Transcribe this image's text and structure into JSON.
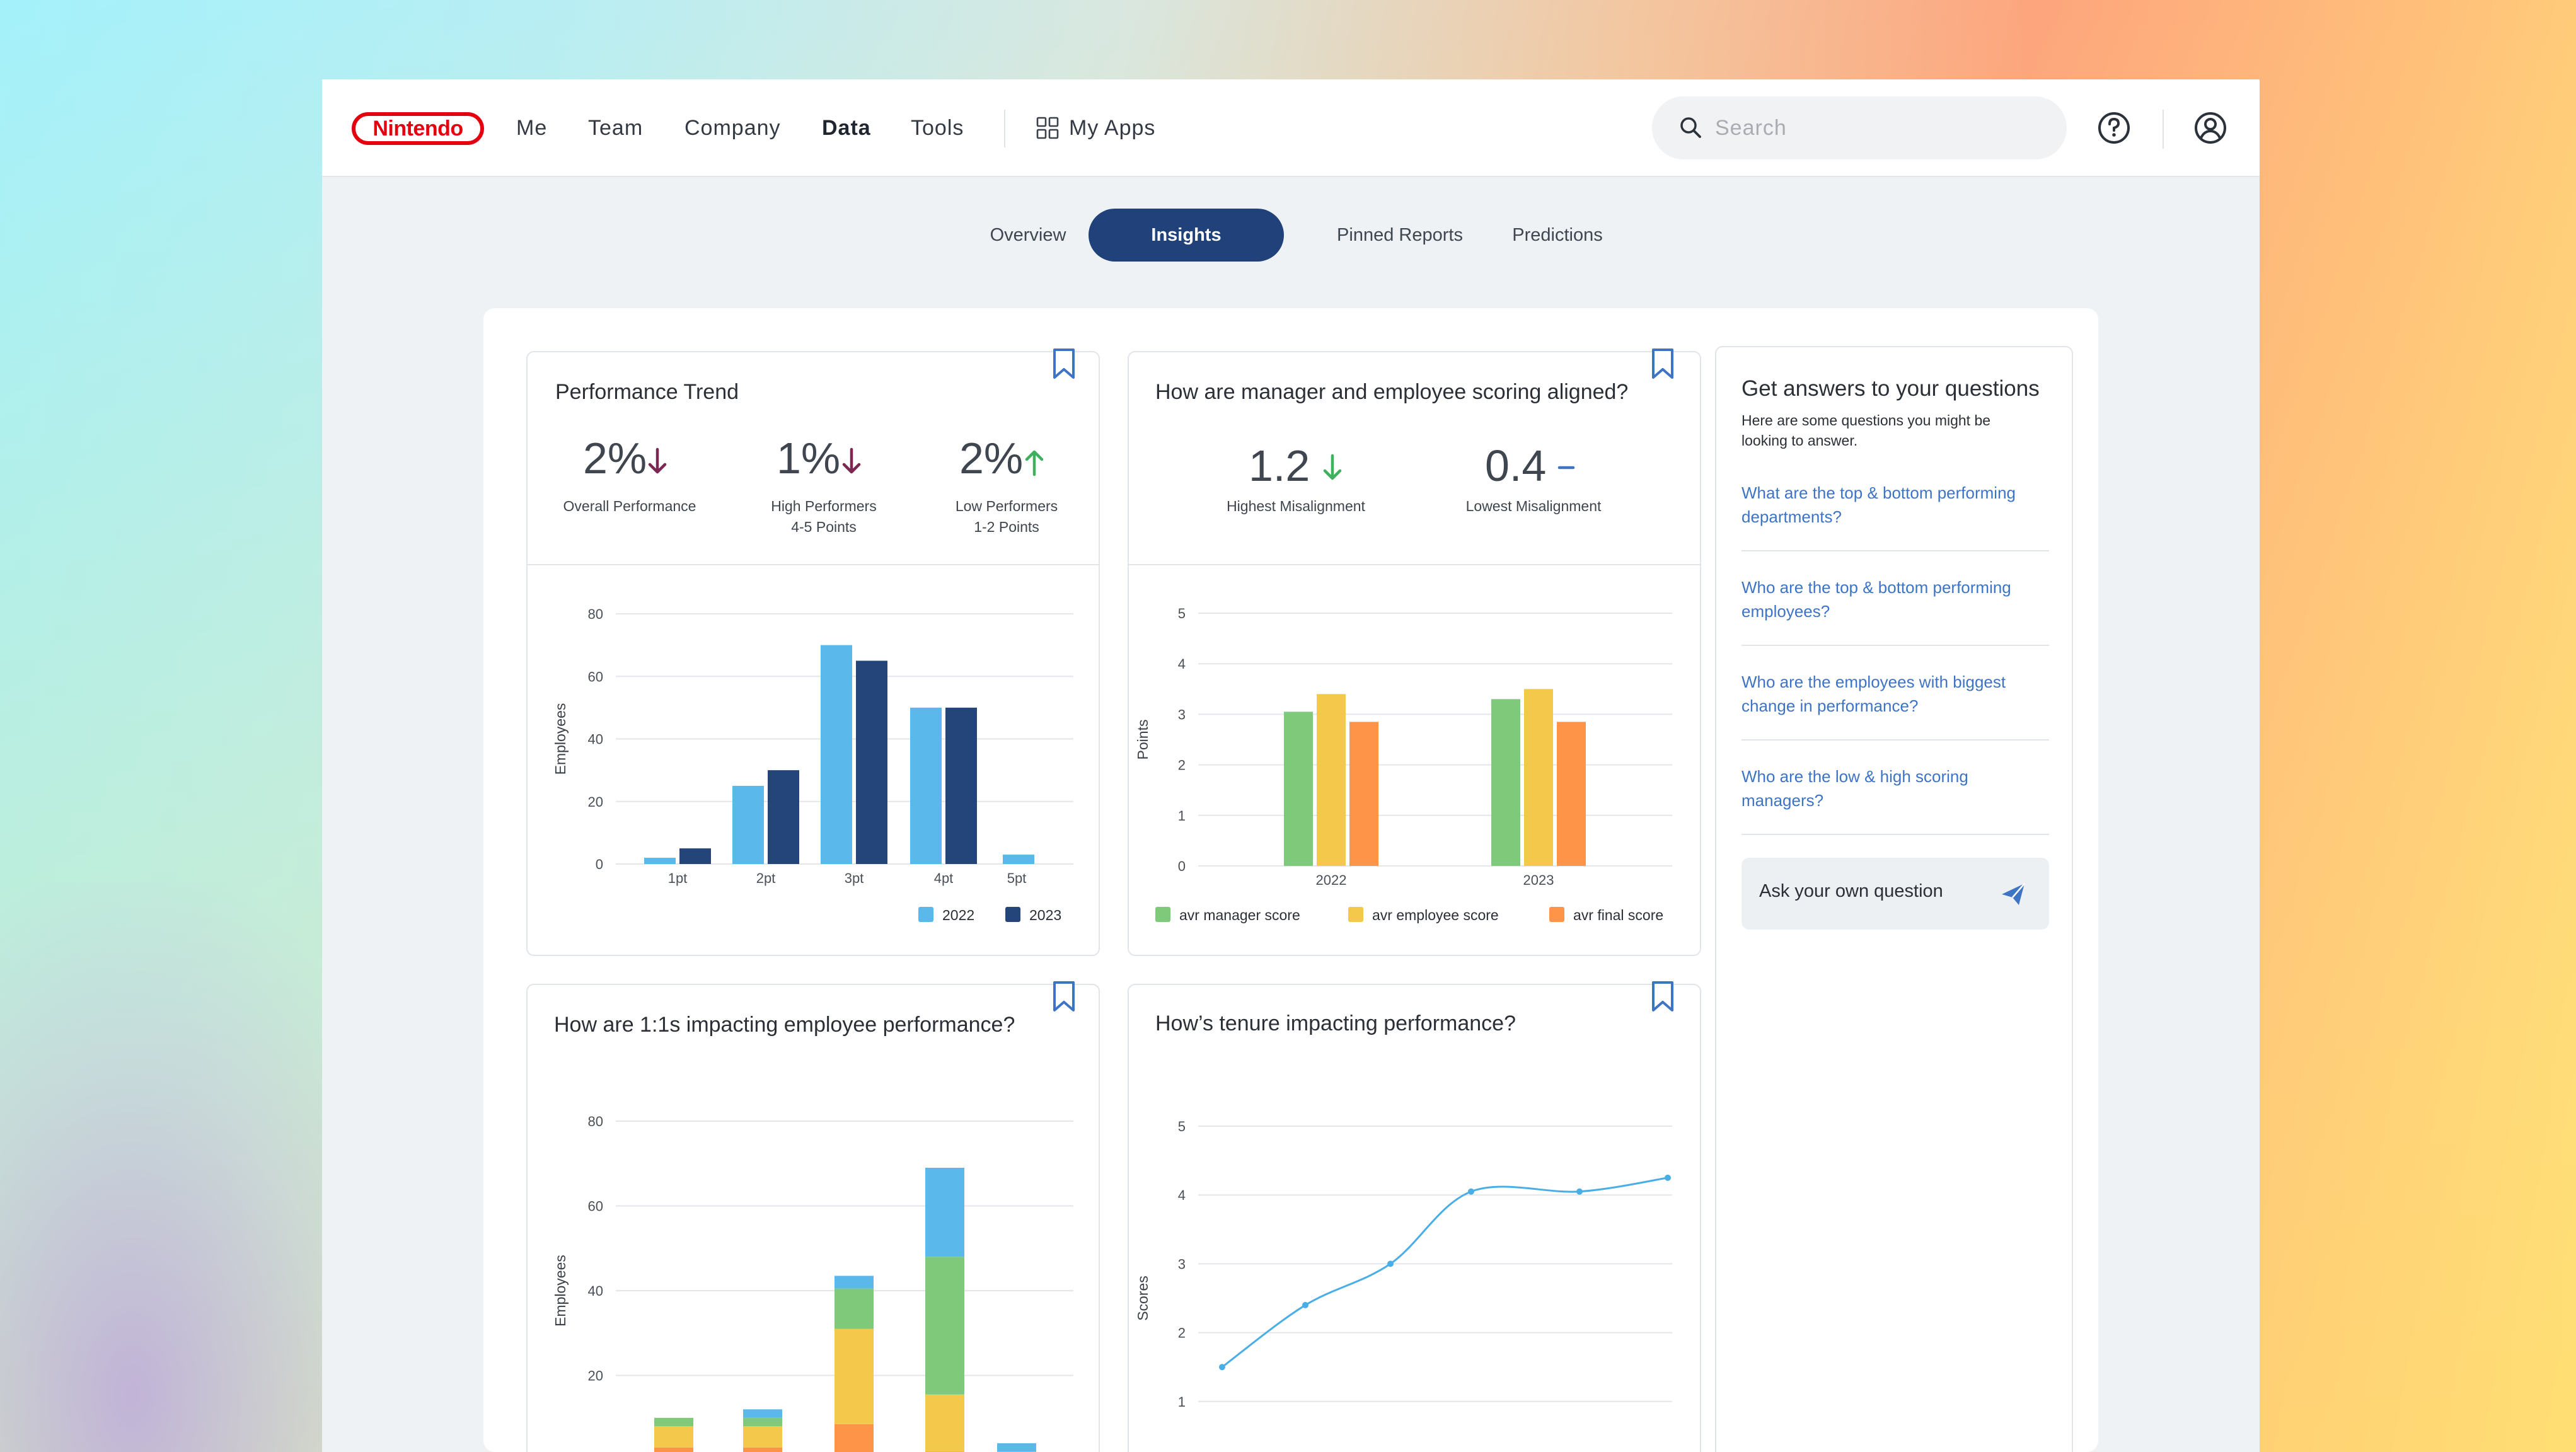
{
  "brand": {
    "logo_text": "Nintendo",
    "logo_color": "#e4000f"
  },
  "nav": {
    "items": [
      {
        "label": "Me",
        "active": false
      },
      {
        "label": "Team",
        "active": false
      },
      {
        "label": "Company",
        "active": false
      },
      {
        "label": "Data",
        "active": true
      },
      {
        "label": "Tools",
        "active": false
      }
    ],
    "my_apps": "My Apps"
  },
  "search": {
    "placeholder": "Search"
  },
  "tabs": [
    {
      "label": "Overview",
      "active": false
    },
    {
      "label": "Insights",
      "active": true
    },
    {
      "label": "Pinned Reports",
      "active": false
    },
    {
      "label": "Predictions",
      "active": false
    }
  ],
  "colors": {
    "primary": "#21417a",
    "link": "#3d74c5",
    "series_light_blue": "#5ab8ea",
    "series_dark_blue": "#234579",
    "series_green": "#7fc97a",
    "series_yellow": "#f4c84a",
    "series_orange": "#fe9448",
    "line_blue": "#4aaee6",
    "arrow_down_purple": "#7b2752",
    "arrow_up_green": "#3fb05e",
    "dash_blue": "#3d74c5"
  },
  "performance_trend": {
    "title": "Performance Trend",
    "kpis": [
      {
        "value": "2%",
        "direction": "down",
        "label_line1": "Overall Performance",
        "label_line2": ""
      },
      {
        "value": "1%",
        "direction": "down",
        "label_line1": "High Performers",
        "label_line2": "4-5 Points"
      },
      {
        "value": "2%",
        "direction": "up",
        "label_line1": "Low Performers",
        "label_line2": "1-2 Points"
      }
    ]
  },
  "alignment": {
    "title": "How are manager and employee scoring aligned?",
    "kpis": [
      {
        "value": "1.2",
        "indicator": "down-arrow",
        "label": "Highest Misalignment"
      },
      {
        "value": "0.4",
        "indicator": "dash",
        "label": "Lowest Misalignment"
      }
    ]
  },
  "one_on_ones": {
    "title": "How are 1:1s impacting employee performance?"
  },
  "tenure": {
    "title": "How’s tenure impacting performance?"
  },
  "sidebar": {
    "title": "Get answers to your questions",
    "subtitle": "Here are some questions you might be looking to answer.",
    "questions": [
      "What are the top & bottom performing departments?",
      "Who are the top & bottom performing employees?",
      "Who are the employees with biggest change in performance?",
      "Who are the low & high scoring managers?"
    ],
    "ask_label": "Ask your own question"
  },
  "chart_data": [
    {
      "type": "bar",
      "title": "",
      "categories": [
        "1pt",
        "2pt",
        "3pt",
        "4pt",
        "5pt"
      ],
      "series": [
        {
          "name": "2022",
          "color": "#5ab8ea",
          "values": [
            2,
            25,
            70,
            50,
            3
          ]
        },
        {
          "name": "2023",
          "color": "#234579",
          "values": [
            5,
            30,
            65,
            50,
            null
          ]
        }
      ],
      "xlabel": "",
      "ylabel": "Employees",
      "ylim": [
        0,
        80
      ],
      "yticks": [
        0,
        20,
        40,
        60,
        80
      ],
      "grid": true,
      "legend": "bottom-right"
    },
    {
      "type": "bar",
      "title": "",
      "categories": [
        "2022",
        "2023"
      ],
      "series": [
        {
          "name": "avr manager score",
          "color": "#7fc97a",
          "values": [
            3.05,
            3.3
          ]
        },
        {
          "name": "avr employee score",
          "color": "#f4c84a",
          "values": [
            3.4,
            3.5
          ]
        },
        {
          "name": "avr final score",
          "color": "#fe9448",
          "values": [
            2.85,
            2.85
          ]
        }
      ],
      "xlabel": "",
      "ylabel": "Points",
      "ylim": [
        0,
        5
      ],
      "yticks": [
        0,
        1,
        2,
        3,
        4,
        5
      ],
      "grid": true,
      "legend": "bottom"
    },
    {
      "type": "bar",
      "stacked": true,
      "title": "",
      "categories": [
        "",
        "",
        "",
        "",
        ""
      ],
      "series": [
        {
          "color": "#fe9448",
          "values": [
            3,
            3,
            8.5,
            2,
            1
          ]
        },
        {
          "color": "#f4c84a",
          "values": [
            5,
            5,
            22.5,
            13.5,
            1
          ]
        },
        {
          "color": "#7fc97a",
          "values": [
            2,
            2,
            9.5,
            32.5,
            0
          ]
        },
        {
          "color": "#5ab8ea",
          "values": [
            0,
            2,
            3,
            21,
            2
          ]
        }
      ],
      "xlabel": "",
      "ylabel": "Employees",
      "ylim": [
        0,
        80
      ],
      "yticks": [
        0,
        20,
        40,
        60,
        80
      ],
      "grid": true
    },
    {
      "type": "line",
      "title": "",
      "x": [
        1,
        2,
        3,
        4,
        5,
        6
      ],
      "series": [
        {
          "color": "#4aaee6",
          "values": [
            1.5,
            2.4,
            3,
            4.05,
            4.05,
            4.25
          ]
        }
      ],
      "xlabel": "",
      "ylabel": "Scores",
      "ylim": [
        0,
        5
      ],
      "yticks": [
        0,
        1,
        2,
        3,
        4,
        5
      ],
      "grid": true
    }
  ]
}
